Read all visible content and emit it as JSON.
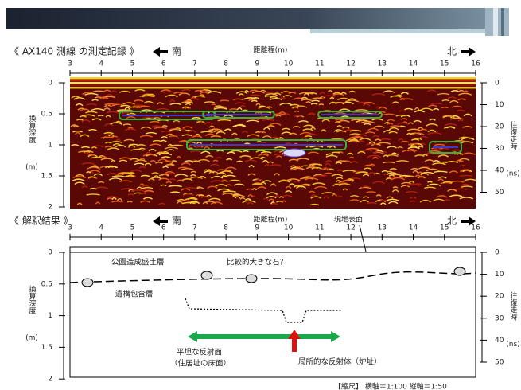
{
  "panel1": {
    "title": "《 AX140 測線 の測定記録 》",
    "south": "南",
    "axis_label": "距離程(m)",
    "north": "北",
    "x_ticks": [
      3,
      4,
      5,
      6,
      7,
      8,
      9,
      10,
      11,
      12,
      13,
      14,
      15,
      16
    ],
    "depth_ticks": [
      0,
      0.5,
      1,
      1.5,
      2
    ],
    "time_ticks": [
      0,
      10,
      20,
      30,
      40,
      50
    ],
    "depth_label": "換算深度",
    "depth_unit": "(m)",
    "time_label": "往復走時",
    "time_unit": "(ns)"
  },
  "panel2": {
    "title": "《 解釈結果 》",
    "south": "南",
    "axis_label": "距離程(m)",
    "north": "北",
    "surface_label": "現地表面",
    "x_ticks": [
      3,
      4,
      5,
      6,
      7,
      8,
      9,
      10,
      11,
      12,
      13,
      14,
      15,
      16
    ],
    "depth_ticks": [
      0,
      0.5,
      1,
      1.5,
      2
    ],
    "time_ticks": [
      0,
      10,
      20,
      30,
      40,
      50
    ],
    "depth_label": "換算深度",
    "depth_unit": "(m)",
    "time_label": "往復走時",
    "time_unit": "(ns)",
    "annotations": [
      "公園造成盛土層",
      "比較的大きな石？",
      "遺構包含層",
      "平坦な反射面",
      "（住居址の床面）",
      "局所的な反射体（炉址）"
    ]
  },
  "footer": "【縮尺】 横軸＝1:100 縦軸＝1:50"
}
